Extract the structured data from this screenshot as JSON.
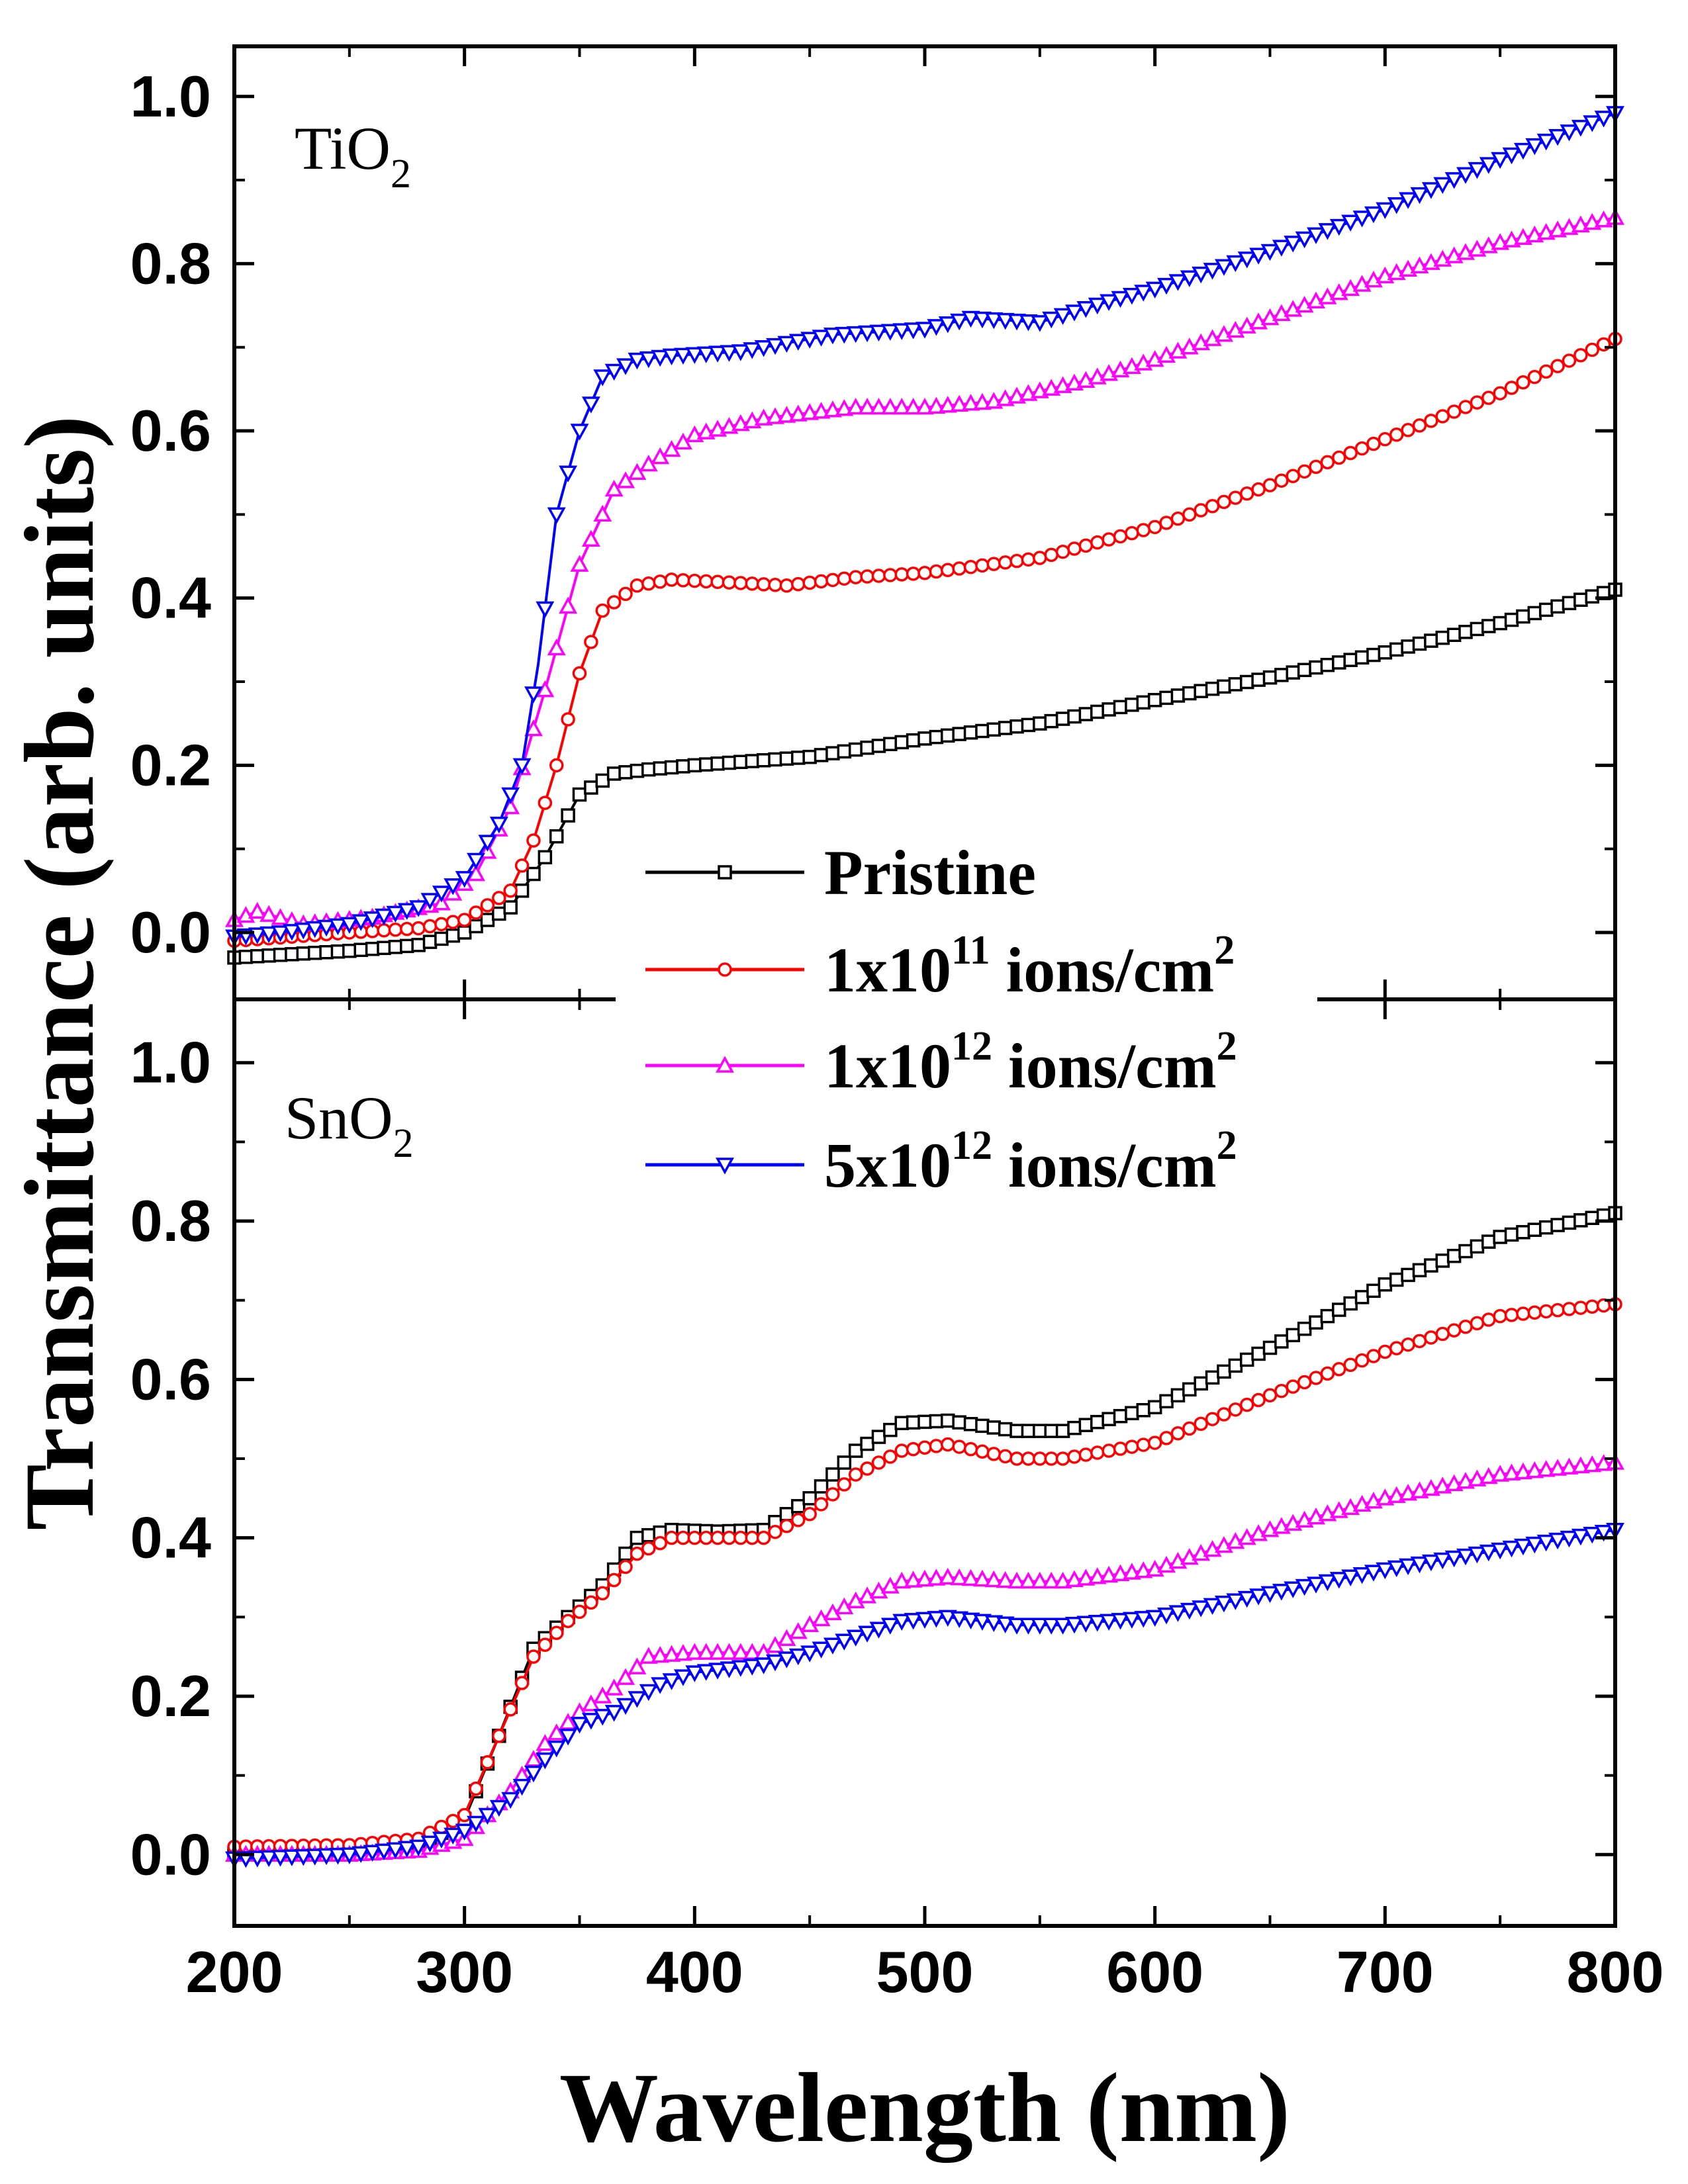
{
  "chart_data": {
    "type": "line",
    "xlabel": "Wavelength (nm)",
    "ylabel": "Transmittance (arb. units)",
    "xlim": [
      200,
      800
    ],
    "x_ticks": [
      200,
      300,
      400,
      500,
      600,
      700,
      800
    ],
    "x_tick_labels": [
      "200",
      "300",
      "400",
      "500",
      "600",
      "700",
      "800"
    ],
    "legend": {
      "placement": "center",
      "entries": [
        {
          "main": "Pristine",
          "sup": "",
          "suffix": "",
          "sup2": "",
          "color": "#000000",
          "marker": "square"
        },
        {
          "main": "1x10",
          "sup": "11",
          "suffix": " ions/cm",
          "sup2": "2",
          "color": "#ff0000",
          "marker": "circle"
        },
        {
          "main": "1x10",
          "sup": "12",
          "suffix": " ions/cm",
          "sup2": "2",
          "color": "#ff00ff",
          "marker": "triangle-up"
        },
        {
          "main": "5x10",
          "sup": "12",
          "suffix": " ions/cm",
          "sup2": "2",
          "color": "#0000ff",
          "marker": "triangle-down"
        }
      ]
    },
    "panels": [
      {
        "label": "TiO",
        "label_sub": "2",
        "ylim": [
          -0.08,
          1.06
        ],
        "y_ticks": [
          0.0,
          0.2,
          0.4,
          0.6,
          0.8,
          1.0
        ],
        "y_tick_labels": [
          "0.0",
          "0.2",
          "0.4",
          "0.6",
          "0.8",
          "1.0"
        ],
        "series": [
          {
            "color": "#000000",
            "marker": "square",
            "points": [
              [
                200,
                -0.03
              ],
              [
                250,
                -0.022
              ],
              [
                280,
                -0.015
              ],
              [
                300,
                0.0
              ],
              [
                320,
                0.03
              ],
              [
                335,
                0.09
              ],
              [
                350,
                0.165
              ],
              [
                365,
                0.19
              ],
              [
                380,
                0.195
              ],
              [
                400,
                0.2
              ],
              [
                450,
                0.21
              ],
              [
                500,
                0.232
              ],
              [
                550,
                0.25
              ],
              [
                600,
                0.278
              ],
              [
                650,
                0.305
              ],
              [
                700,
                0.335
              ],
              [
                750,
                0.37
              ],
              [
                800,
                0.41
              ]
            ]
          },
          {
            "color": "#ff0000",
            "marker": "circle",
            "points": [
              [
                200,
                -0.01
              ],
              [
                250,
                0.0
              ],
              [
                280,
                0.005
              ],
              [
                300,
                0.015
              ],
              [
                320,
                0.05
              ],
              [
                330,
                0.11
              ],
              [
                340,
                0.2
              ],
              [
                350,
                0.31
              ],
              [
                360,
                0.385
              ],
              [
                375,
                0.415
              ],
              [
                390,
                0.422
              ],
              [
                420,
                0.418
              ],
              [
                440,
                0.415
              ],
              [
                470,
                0.425
              ],
              [
                500,
                0.43
              ],
              [
                550,
                0.448
              ],
              [
                600,
                0.485
              ],
              [
                650,
                0.535
              ],
              [
                700,
                0.59
              ],
              [
                750,
                0.645
              ],
              [
                800,
                0.71
              ]
            ]
          },
          {
            "color": "#ff00ff",
            "marker": "triangle-up",
            "points": [
              [
                200,
                0.015
              ],
              [
                210,
                0.025
              ],
              [
                230,
                0.01
              ],
              [
                260,
                0.018
              ],
              [
                290,
                0.035
              ],
              [
                305,
                0.07
              ],
              [
                320,
                0.15
              ],
              [
                335,
                0.29
              ],
              [
                350,
                0.44
              ],
              [
                365,
                0.53
              ],
              [
                380,
                0.56
              ],
              [
                400,
                0.595
              ],
              [
                430,
                0.615
              ],
              [
                470,
                0.628
              ],
              [
                500,
                0.628
              ],
              [
                530,
                0.635
              ],
              [
                570,
                0.66
              ],
              [
                600,
                0.685
              ],
              [
                650,
                0.735
              ],
              [
                700,
                0.785
              ],
              [
                750,
                0.825
              ],
              [
                800,
                0.855
              ]
            ]
          },
          {
            "color": "#0000ff",
            "marker": "triangle-down",
            "points": [
              [
                200,
                -0.005
              ],
              [
                220,
                0.0
              ],
              [
                250,
                0.01
              ],
              [
                280,
                0.03
              ],
              [
                300,
                0.065
              ],
              [
                315,
                0.13
              ],
              [
                325,
                0.2
              ],
              [
                332,
                0.32
              ],
              [
                340,
                0.5
              ],
              [
                350,
                0.6
              ],
              [
                360,
                0.665
              ],
              [
                375,
                0.685
              ],
              [
                390,
                0.69
              ],
              [
                420,
                0.695
              ],
              [
                460,
                0.715
              ],
              [
                500,
                0.722
              ],
              [
                520,
                0.735
              ],
              [
                550,
                0.73
              ],
              [
                580,
                0.755
              ],
              [
                600,
                0.77
              ],
              [
                650,
                0.815
              ],
              [
                700,
                0.865
              ],
              [
                750,
                0.925
              ],
              [
                800,
                0.98
              ]
            ]
          }
        ]
      },
      {
        "label": "SnO",
        "label_sub": "2",
        "ylim": [
          -0.09,
          1.08
        ],
        "y_ticks": [
          0.0,
          0.2,
          0.4,
          0.6,
          0.8,
          1.0
        ],
        "y_tick_labels": [
          "0.0",
          "0.2",
          "0.4",
          "0.6",
          "0.8",
          "1.0"
        ],
        "series": [
          {
            "color": "#000000",
            "marker": "square",
            "points": [
              [
                200,
                0.0
              ],
              [
                250,
                0.005
              ],
              [
                280,
                0.01
              ],
              [
                300,
                0.045
              ],
              [
                315,
                0.15
              ],
              [
                330,
                0.26
              ],
              [
                345,
                0.3
              ],
              [
                360,
                0.34
              ],
              [
                375,
                0.4
              ],
              [
                390,
                0.41
              ],
              [
                410,
                0.408
              ],
              [
                430,
                0.41
              ],
              [
                450,
                0.45
              ],
              [
                470,
                0.51
              ],
              [
                490,
                0.545
              ],
              [
                510,
                0.548
              ],
              [
                540,
                0.535
              ],
              [
                560,
                0.535
              ],
              [
                600,
                0.565
              ],
              [
                650,
                0.64
              ],
              [
                700,
                0.72
              ],
              [
                750,
                0.78
              ],
              [
                800,
                0.81
              ]
            ]
          },
          {
            "color": "#ff0000",
            "marker": "circle",
            "points": [
              [
                200,
                0.01
              ],
              [
                250,
                0.012
              ],
              [
                280,
                0.02
              ],
              [
                300,
                0.05
              ],
              [
                315,
                0.15
              ],
              [
                330,
                0.25
              ],
              [
                345,
                0.295
              ],
              [
                360,
                0.33
              ],
              [
                375,
                0.38
              ],
              [
                390,
                0.4
              ],
              [
                410,
                0.4
              ],
              [
                430,
                0.4
              ],
              [
                450,
                0.43
              ],
              [
                470,
                0.48
              ],
              [
                490,
                0.51
              ],
              [
                510,
                0.518
              ],
              [
                540,
                0.5
              ],
              [
                560,
                0.5
              ],
              [
                600,
                0.52
              ],
              [
                650,
                0.58
              ],
              [
                700,
                0.635
              ],
              [
                750,
                0.68
              ],
              [
                800,
                0.695
              ]
            ]
          },
          {
            "color": "#ff00ff",
            "marker": "triangle-up",
            "points": [
              [
                200,
                0.0
              ],
              [
                250,
                0.0
              ],
              [
                280,
                0.005
              ],
              [
                300,
                0.02
              ],
              [
                320,
                0.08
              ],
              [
                335,
                0.14
              ],
              [
                350,
                0.18
              ],
              [
                365,
                0.21
              ],
              [
                380,
                0.25
              ],
              [
                400,
                0.255
              ],
              [
                430,
                0.255
              ],
              [
                450,
                0.29
              ],
              [
                470,
                0.32
              ],
              [
                490,
                0.345
              ],
              [
                510,
                0.35
              ],
              [
                540,
                0.345
              ],
              [
                560,
                0.345
              ],
              [
                600,
                0.36
              ],
              [
                650,
                0.41
              ],
              [
                700,
                0.45
              ],
              [
                750,
                0.48
              ],
              [
                800,
                0.495
              ]
            ]
          },
          {
            "color": "#0000ff",
            "marker": "triangle-down",
            "points": [
              [
                200,
                -0.005
              ],
              [
                250,
                0.0
              ],
              [
                280,
                0.01
              ],
              [
                300,
                0.03
              ],
              [
                320,
                0.07
              ],
              [
                335,
                0.12
              ],
              [
                350,
                0.165
              ],
              [
                365,
                0.18
              ],
              [
                385,
                0.215
              ],
              [
                400,
                0.23
              ],
              [
                430,
                0.24
              ],
              [
                450,
                0.255
              ],
              [
                470,
                0.275
              ],
              [
                490,
                0.295
              ],
              [
                510,
                0.3
              ],
              [
                540,
                0.29
              ],
              [
                560,
                0.29
              ],
              [
                600,
                0.3
              ],
              [
                650,
                0.33
              ],
              [
                700,
                0.36
              ],
              [
                750,
                0.385
              ],
              [
                800,
                0.41
              ]
            ]
          }
        ]
      }
    ]
  }
}
